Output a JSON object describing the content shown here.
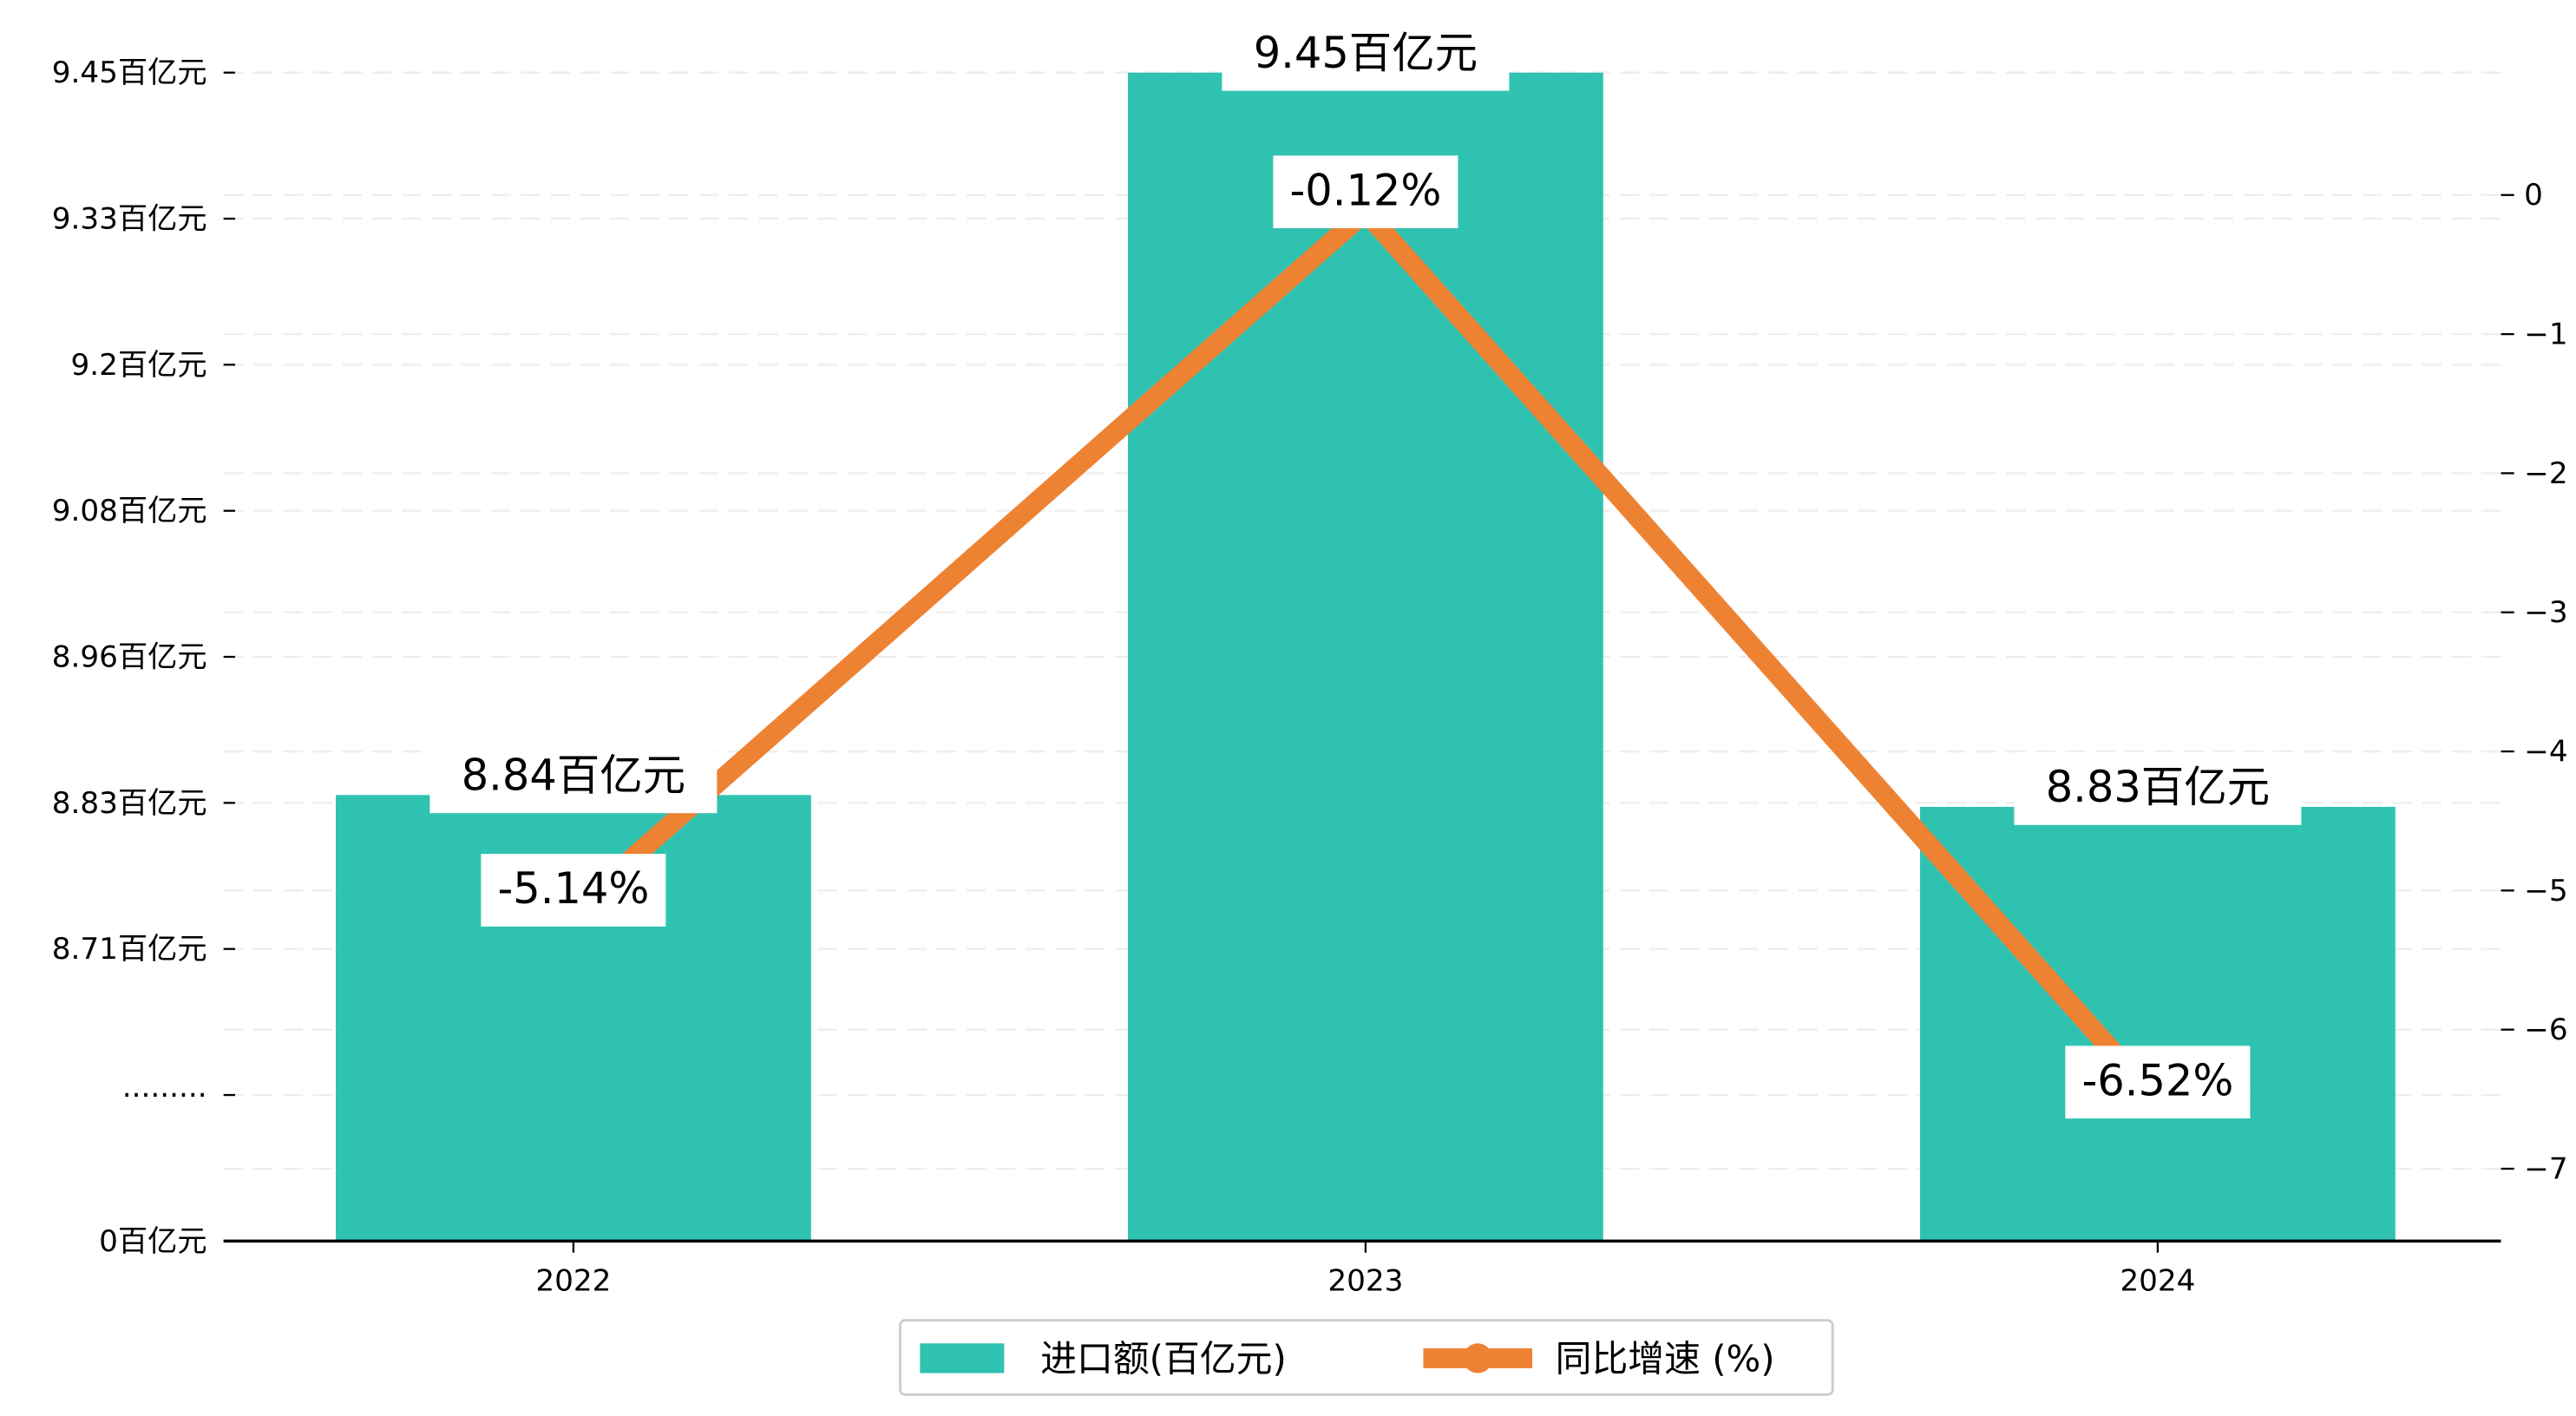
{
  "chart_data": {
    "type": "bar+line",
    "categories": [
      "2022",
      "2023",
      "2024"
    ],
    "series": [
      {
        "name": "进口额(百亿元)",
        "type": "bar",
        "axis": "left",
        "values": [
          8.84,
          9.45,
          8.83
        ],
        "labels": [
          "8.84百亿元",
          "9.45百亿元",
          "8.83百亿元"
        ],
        "color": "#1ABBA9"
      },
      {
        "name": "同比增速 (%)",
        "type": "line",
        "axis": "right",
        "values": [
          -5.14,
          -0.12,
          -6.52
        ],
        "labels": [
          "-5.14%",
          "-0.12%",
          "-6.52%"
        ],
        "color": "#EE8233"
      }
    ],
    "left_axis": {
      "ticks": [
        {
          "value": 0,
          "label": "0百亿元"
        },
        {
          "value": null,
          "label": "·········"
        },
        {
          "value": 8.71,
          "label": "8.71百亿元"
        },
        {
          "value": 8.83,
          "label": "8.83百亿元"
        },
        {
          "value": 8.96,
          "label": "8.96百亿元"
        },
        {
          "value": 9.08,
          "label": "9.08百亿元"
        },
        {
          "value": 9.2,
          "label": "9.2百亿元"
        },
        {
          "value": 9.33,
          "label": "9.33百亿元"
        },
        {
          "value": 9.45,
          "label": "9.45百亿元"
        }
      ],
      "broken": true
    },
    "right_axis": {
      "ticks": [
        0,
        -1,
        -2,
        -3,
        -4,
        -5,
        -6,
        -7
      ],
      "tick_labels": [
        "0",
        "−1",
        "−2",
        "−3",
        "−4",
        "−5",
        "−6",
        "−7"
      ],
      "ylim": [
        -7.52,
        0.88
      ]
    },
    "grid": "horizontal dashed, light",
    "legend_position": "bottom-center",
    "title": "",
    "xlabel": "",
    "ylabel": ""
  }
}
